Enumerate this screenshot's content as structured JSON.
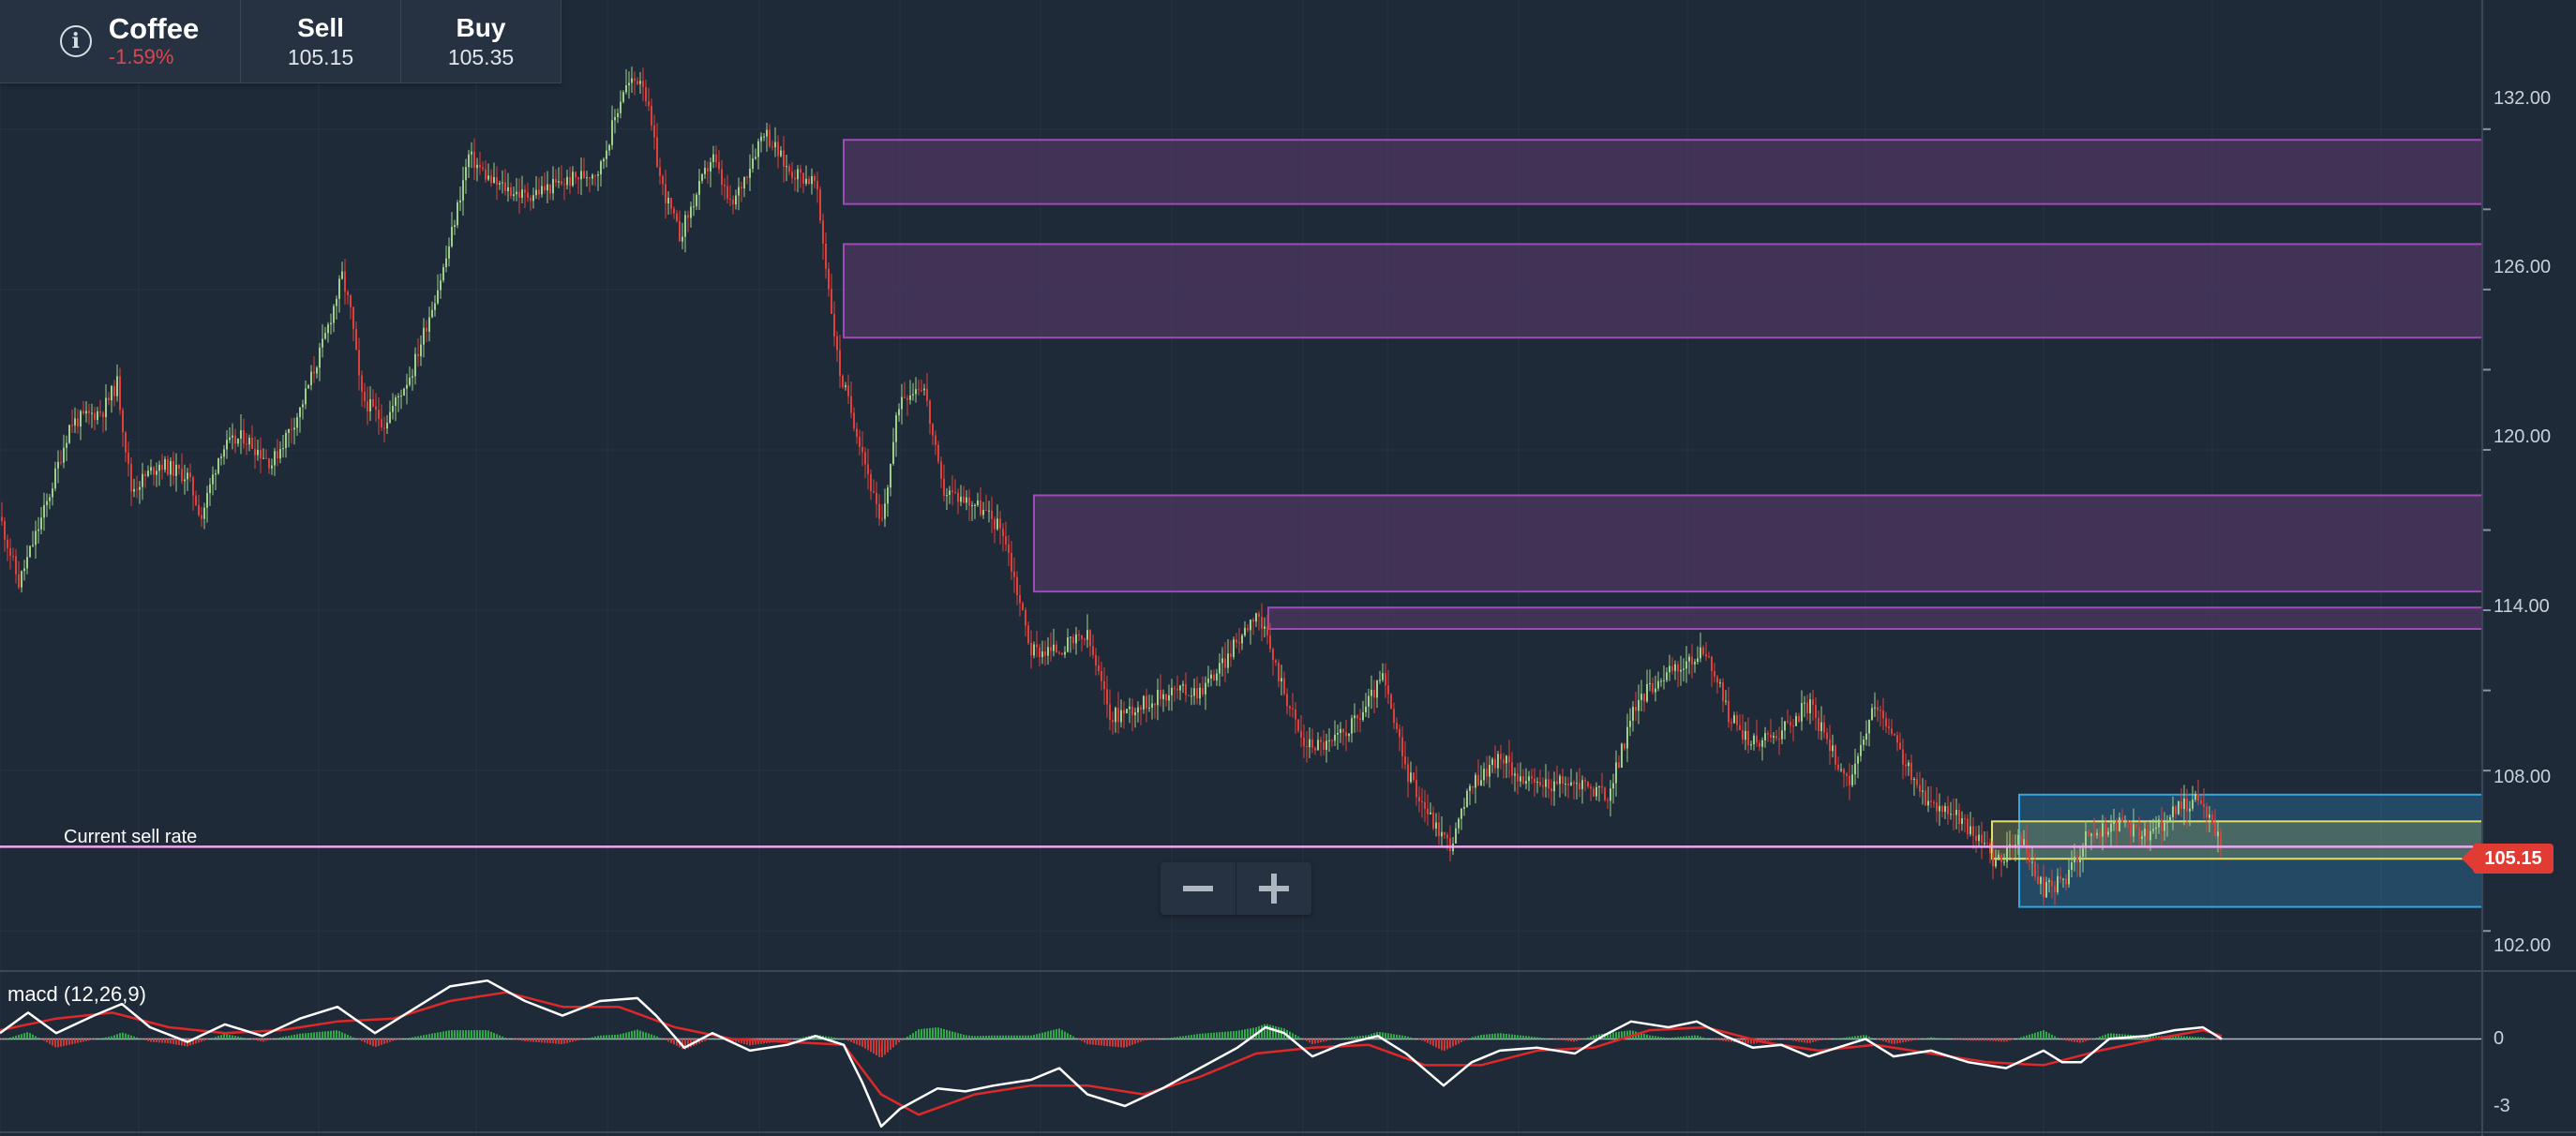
{
  "instrument": {
    "name": "Coffee",
    "change": "-1.59%",
    "sell_label": "Sell",
    "sell_price": "105.15",
    "buy_label": "Buy",
    "buy_price": "105.35"
  },
  "chart_labels": {
    "current_sell_rate": "Current sell rate",
    "current_price_tag": "105.15",
    "macd_label": "macd (12,26,9)"
  },
  "axis": {
    "price_ticks": [
      "132.00",
      "126.00",
      "120.00",
      "114.00",
      "108.00",
      "102.00"
    ],
    "macd_ticks": [
      "0",
      "-3"
    ]
  },
  "colors": {
    "background": "#1f2a38",
    "up_candle": "#9fd08a",
    "down_candle": "#e0403a",
    "sell_rate_line": "#f0a8f0",
    "zone_purple": "#6a3f7c",
    "zone_blue": "#2d9ad6",
    "zone_yellow": "#e2e06a",
    "macd_line": "#ffffff",
    "signal_line": "#e02828",
    "histogram_up": "#2fa84a",
    "histogram_down": "#c83a3a"
  },
  "chart_data": {
    "type": "candlestick",
    "title": "Coffee",
    "ylim": [
      100.5,
      135.5
    ],
    "current_sell_rate": 105.15,
    "close_series": [
      [
        0,
        117.5
      ],
      [
        20,
        115
      ],
      [
        50,
        118
      ],
      [
        75,
        121
      ],
      [
        110,
        121.5
      ],
      [
        125,
        122.5
      ],
      [
        140,
        118.5
      ],
      [
        170,
        119.5
      ],
      [
        200,
        119
      ],
      [
        215,
        117.5
      ],
      [
        235,
        120
      ],
      [
        260,
        120.5
      ],
      [
        290,
        119.5
      ],
      [
        320,
        121.5
      ],
      [
        345,
        124
      ],
      [
        365,
        126.5
      ],
      [
        375,
        125
      ],
      [
        385,
        122
      ],
      [
        410,
        121
      ],
      [
        440,
        123
      ],
      [
        475,
        127
      ],
      [
        500,
        131
      ],
      [
        525,
        130
      ],
      [
        560,
        129.5
      ],
      [
        600,
        130
      ],
      [
        640,
        130.5
      ],
      [
        665,
        133.5
      ],
      [
        685,
        134
      ],
      [
        705,
        130
      ],
      [
        725,
        128
      ],
      [
        760,
        131
      ],
      [
        780,
        129
      ],
      [
        815,
        132
      ],
      [
        840,
        130.5
      ],
      [
        870,
        130
      ],
      [
        895,
        123
      ],
      [
        920,
        120
      ],
      [
        940,
        117
      ],
      [
        960,
        122
      ],
      [
        985,
        122.5
      ],
      [
        1005,
        118.5
      ],
      [
        1040,
        118
      ],
      [
        1070,
        117
      ],
      [
        1100,
        112.5
      ],
      [
        1125,
        112.5
      ],
      [
        1160,
        113
      ],
      [
        1185,
        110
      ],
      [
        1220,
        110.5
      ],
      [
        1250,
        111
      ],
      [
        1280,
        111
      ],
      [
        1305,
        112
      ],
      [
        1340,
        114
      ],
      [
        1365,
        111.5
      ],
      [
        1390,
        109
      ],
      [
        1420,
        109
      ],
      [
        1450,
        110
      ],
      [
        1475,
        111.5
      ],
      [
        1500,
        108
      ],
      [
        1530,
        106
      ],
      [
        1548,
        105.2
      ],
      [
        1570,
        107.5
      ],
      [
        1600,
        108.5
      ],
      [
        1630,
        107.5
      ],
      [
        1660,
        107.5
      ],
      [
        1690,
        107.5
      ],
      [
        1715,
        107
      ],
      [
        1745,
        110.5
      ],
      [
        1770,
        111.5
      ],
      [
        1800,
        112
      ],
      [
        1820,
        112.5
      ],
      [
        1845,
        110
      ],
      [
        1870,
        109
      ],
      [
        1900,
        109.5
      ],
      [
        1930,
        110.5
      ],
      [
        1950,
        109
      ],
      [
        1975,
        107.5
      ],
      [
        2000,
        110.5
      ],
      [
        2030,
        108.5
      ],
      [
        2050,
        107
      ],
      [
        2080,
        106.5
      ],
      [
        2110,
        105.5
      ],
      [
        2130,
        104.5
      ],
      [
        2155,
        105.5
      ],
      [
        2180,
        103.5
      ],
      [
        2205,
        104
      ],
      [
        2225,
        105.5
      ],
      [
        2260,
        106
      ],
      [
        2290,
        105.5
      ],
      [
        2320,
        106.5
      ],
      [
        2345,
        107
      ],
      [
        2360,
        106
      ],
      [
        2370,
        105.2
      ]
    ],
    "zones": [
      {
        "color": "purple",
        "x_start": 900,
        "x_end": 2648,
        "low": 129.2,
        "high": 131.6
      },
      {
        "color": "purple",
        "x_start": 900,
        "x_end": 2648,
        "low": 124.2,
        "high": 127.7
      },
      {
        "color": "purple",
        "x_start": 1103,
        "x_end": 2648,
        "low": 114.7,
        "high": 118.3
      },
      {
        "color": "purple",
        "x_start": 1353,
        "x_end": 2648,
        "low": 113.3,
        "high": 114.1
      },
      {
        "color": "blue",
        "x_start": 2154,
        "x_end": 2648,
        "low": 102.9,
        "high": 107.1
      },
      {
        "color": "yellow",
        "x_start": 2125,
        "x_end": 2648,
        "low": 104.7,
        "high": 106.1
      }
    ],
    "macd": {
      "name": "macd (12,26,9)",
      "ylim": [
        -3.2,
        2.2
      ],
      "macd_series": [
        [
          0,
          0.2
        ],
        [
          30,
          0.9
        ],
        [
          60,
          0.2
        ],
        [
          100,
          0.8
        ],
        [
          130,
          1.2
        ],
        [
          160,
          0.4
        ],
        [
          200,
          -0.1
        ],
        [
          240,
          0.5
        ],
        [
          280,
          0.1
        ],
        [
          320,
          0.7
        ],
        [
          360,
          1.1
        ],
        [
          400,
          0.2
        ],
        [
          440,
          1.0
        ],
        [
          480,
          1.8
        ],
        [
          520,
          2.0
        ],
        [
          560,
          1.3
        ],
        [
          600,
          0.8
        ],
        [
          640,
          1.3
        ],
        [
          680,
          1.4
        ],
        [
          700,
          0.8
        ],
        [
          730,
          -0.3
        ],
        [
          760,
          0.2
        ],
        [
          800,
          -0.4
        ],
        [
          840,
          -0.2
        ],
        [
          870,
          0.1
        ],
        [
          900,
          -0.2
        ],
        [
          920,
          -1.5
        ],
        [
          940,
          -3.0
        ],
        [
          960,
          -2.4
        ],
        [
          1000,
          -1.7
        ],
        [
          1030,
          -1.8
        ],
        [
          1060,
          -1.6
        ],
        [
          1100,
          -1.4
        ],
        [
          1130,
          -1.0
        ],
        [
          1160,
          -1.9
        ],
        [
          1200,
          -2.3
        ],
        [
          1240,
          -1.7
        ],
        [
          1280,
          -1.0
        ],
        [
          1320,
          -0.3
        ],
        [
          1350,
          0.4
        ],
        [
          1370,
          0.2
        ],
        [
          1400,
          -0.6
        ],
        [
          1430,
          -0.2
        ],
        [
          1470,
          0.1
        ],
        [
          1500,
          -0.5
        ],
        [
          1540,
          -1.6
        ],
        [
          1570,
          -0.8
        ],
        [
          1600,
          -0.4
        ],
        [
          1640,
          -0.3
        ],
        [
          1680,
          -0.5
        ],
        [
          1710,
          0.1
        ],
        [
          1740,
          0.6
        ],
        [
          1780,
          0.4
        ],
        [
          1810,
          0.6
        ],
        [
          1840,
          0.1
        ],
        [
          1870,
          -0.3
        ],
        [
          1900,
          -0.2
        ],
        [
          1930,
          -0.6
        ],
        [
          1960,
          -0.3
        ],
        [
          1990,
          0.0
        ],
        [
          2020,
          -0.6
        ],
        [
          2060,
          -0.4
        ],
        [
          2100,
          -0.8
        ],
        [
          2140,
          -1.0
        ],
        [
          2180,
          -0.4
        ],
        [
          2200,
          -0.8
        ],
        [
          2220,
          -0.8
        ],
        [
          2250,
          0.0
        ],
        [
          2290,
          0.1
        ],
        [
          2320,
          0.3
        ],
        [
          2350,
          0.4
        ],
        [
          2370,
          0.0
        ]
      ],
      "signal_series": [
        [
          0,
          0.3
        ],
        [
          60,
          0.7
        ],
        [
          120,
          0.9
        ],
        [
          180,
          0.4
        ],
        [
          240,
          0.2
        ],
        [
          300,
          0.3
        ],
        [
          360,
          0.6
        ],
        [
          420,
          0.7
        ],
        [
          480,
          1.3
        ],
        [
          540,
          1.6
        ],
        [
          600,
          1.1
        ],
        [
          660,
          1.1
        ],
        [
          720,
          0.4
        ],
        [
          780,
          0.0
        ],
        [
          840,
          -0.1
        ],
        [
          900,
          -0.2
        ],
        [
          940,
          -1.9
        ],
        [
          980,
          -2.6
        ],
        [
          1040,
          -1.9
        ],
        [
          1100,
          -1.6
        ],
        [
          1160,
          -1.6
        ],
        [
          1220,
          -1.9
        ],
        [
          1280,
          -1.3
        ],
        [
          1340,
          -0.5
        ],
        [
          1400,
          -0.3
        ],
        [
          1460,
          -0.2
        ],
        [
          1520,
          -0.9
        ],
        [
          1580,
          -0.9
        ],
        [
          1640,
          -0.4
        ],
        [
          1700,
          -0.3
        ],
        [
          1760,
          0.3
        ],
        [
          1820,
          0.4
        ],
        [
          1880,
          -0.1
        ],
        [
          1940,
          -0.4
        ],
        [
          2000,
          -0.2
        ],
        [
          2060,
          -0.5
        ],
        [
          2120,
          -0.8
        ],
        [
          2180,
          -0.9
        ],
        [
          2240,
          -0.4
        ],
        [
          2300,
          0.0
        ],
        [
          2350,
          0.3
        ],
        [
          2370,
          0.1
        ]
      ]
    }
  }
}
